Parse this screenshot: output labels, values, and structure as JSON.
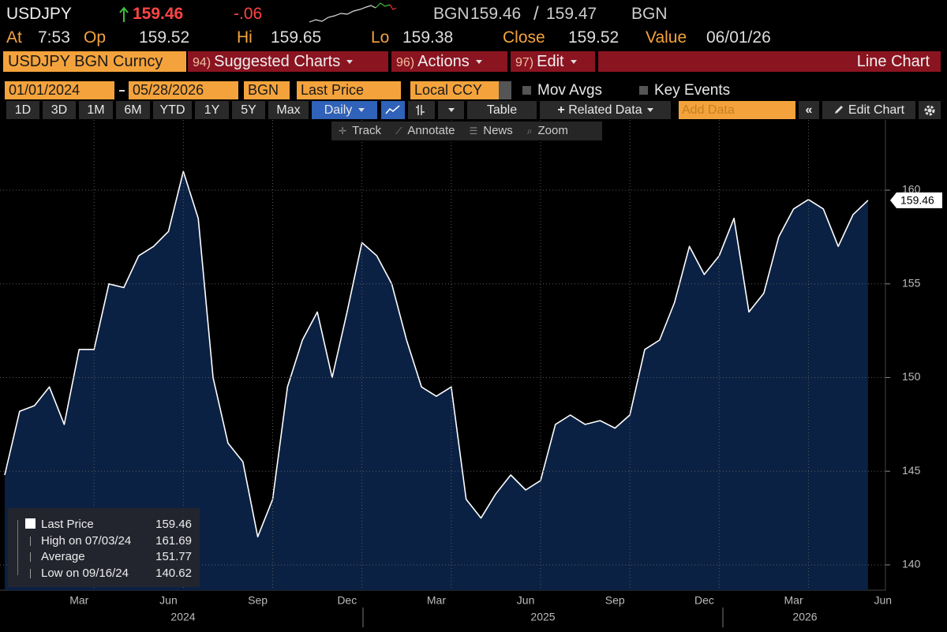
{
  "header": {
    "ticker": "USDJPY",
    "last": "159.46",
    "change": "-.06",
    "bid_source": "BGN",
    "bid": "159.46",
    "ask": "159.47",
    "ask_source": "BGN",
    "stats": [
      {
        "label": "At",
        "value": "7:53"
      },
      {
        "label": "Op",
        "value": "159.52"
      },
      {
        "label": "Hi",
        "value": "159.65"
      },
      {
        "label": "Lo",
        "value": "159.38"
      },
      {
        "label": "Close",
        "value": "159.52"
      },
      {
        "label": "Value",
        "value": "06/01/26"
      }
    ]
  },
  "menu": {
    "security": "USDJPY BGN Curncy",
    "items": [
      {
        "key": "94)",
        "label": "Suggested Charts"
      },
      {
        "key": "96)",
        "label": "Actions"
      },
      {
        "key": "97)",
        "label": "Edit"
      }
    ],
    "chart_type": "Line Chart"
  },
  "settings": {
    "start": "01/01/2024",
    "end": "05/28/2026",
    "source": "BGN",
    "field": "Last Price",
    "currency": "Local CCY",
    "options": [
      "Mov Avgs",
      "Key Events"
    ]
  },
  "toolbar": {
    "periods": [
      "1D",
      "3D",
      "1M",
      "6M",
      "YTD",
      "1Y",
      "5Y",
      "Max"
    ],
    "frequency": "Daily",
    "table": "Table",
    "related": "Related Data",
    "add_data": "Add Data",
    "edit_chart": "Edit Chart"
  },
  "tools": [
    "Track",
    "Annotate",
    "News",
    "Zoom"
  ],
  "chart_data": {
    "type": "area",
    "color": "#ffffff",
    "fill": "#0b2144",
    "categories": [
      null,
      null,
      null,
      null,
      null,
      "Mar",
      null,
      null,
      null,
      null,
      null,
      "Jun",
      null,
      null,
      null,
      null,
      null,
      "Sep",
      null,
      null,
      null,
      null,
      null,
      "Dec",
      null,
      null,
      null,
      null,
      null,
      "Mar",
      null,
      null,
      null,
      null,
      null,
      "Jun",
      null,
      null,
      null,
      null,
      null,
      "Sep",
      null,
      null,
      null,
      null,
      null,
      "Dec",
      null,
      null,
      null,
      null,
      null,
      "Mar",
      null,
      null,
      null,
      null,
      null,
      "Jun"
    ],
    "series": [
      {
        "name": "Last Price",
        "color": "#ffffff",
        "values": [
          144.8,
          148.2,
          148.5,
          149.5,
          147.5,
          151.5,
          151.5,
          155,
          154.8,
          156.5,
          157,
          157.8,
          161,
          158.5,
          150,
          146.5,
          145.5,
          141.5,
          143.5,
          149.5,
          152,
          153.5,
          150,
          153.5,
          157.2,
          156.5,
          155,
          152,
          149.5,
          149,
          149.5,
          143.5,
          142.5,
          143.8,
          144.8,
          144,
          144.5,
          147.5,
          148,
          147.5,
          147.7,
          147.3,
          148,
          151.5,
          152,
          154,
          157,
          155.5,
          156.5,
          158.5,
          153.5,
          154.5,
          157.5,
          159,
          159.5,
          159,
          157,
          158.7,
          159.46,
          null
        ]
      }
    ],
    "ylim": [
      138.65,
      163.75
    ],
    "yticks": [
      140,
      145,
      150,
      155,
      160
    ],
    "grid": true,
    "year_labels": [
      "2024",
      "2025",
      "2026"
    ],
    "legend": [
      {
        "label": "Last Price",
        "value": "159.46"
      },
      {
        "label": "High on 07/03/24",
        "value": "161.69"
      },
      {
        "label": "Average",
        "value": "151.77"
      },
      {
        "label": "Low on 09/16/24",
        "value": "140.62"
      }
    ]
  }
}
